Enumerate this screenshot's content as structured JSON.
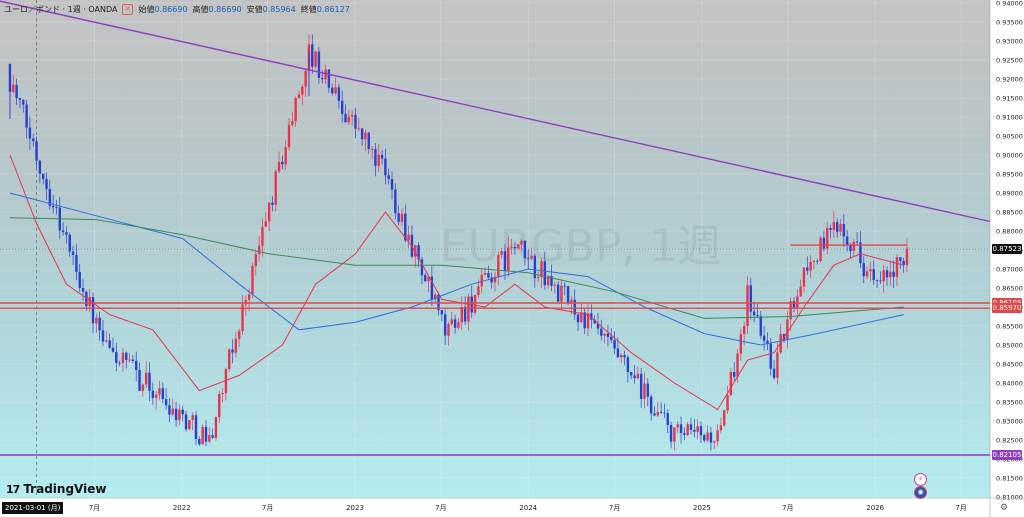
{
  "header": {
    "symbol": "ユーロ／ポンド · 1週 · OANDA",
    "ohlc": [
      {
        "label": "始値",
        "value": "0.86690"
      },
      {
        "label": "高値",
        "value": "0.86690"
      },
      {
        "label": "安値",
        "value": "0.85964"
      },
      {
        "label": "終値",
        "value": "0.86127"
      }
    ]
  },
  "watermark": "EURGBP, 1週",
  "brand": {
    "name": "TradingView",
    "mark": "17"
  },
  "cursor_date": "2021-03-01 (月)",
  "markers": {
    "alert": "⚡",
    "flag": "◉"
  },
  "price_labels": [
    {
      "value": "0.87523",
      "price": 0.87523,
      "bg": "#111111"
    },
    {
      "value": "0.86105",
      "price": 0.86105,
      "bg": "#e04848"
    },
    {
      "value": "0.85970",
      "price": 0.8597,
      "bg": "#e04848"
    },
    {
      "value": "0.82105",
      "price": 0.82105,
      "bg": "#8e3fbf"
    }
  ],
  "chart_data": {
    "type": "candlestick",
    "timeframe": "weekly",
    "y_axis": {
      "min": 0.81,
      "max": 0.94,
      "step": 0.005,
      "ticks": [
        "0.81000",
        "0.81500",
        "0.82000",
        "0.82500",
        "0.83000",
        "0.83500",
        "0.84000",
        "0.84500",
        "0.85000",
        "0.85500",
        "0.86000",
        "0.86500",
        "0.87000",
        "0.87500",
        "0.88000",
        "0.88500",
        "0.89000",
        "0.89500",
        "0.90000",
        "0.90500",
        "0.91000",
        "0.91500",
        "0.92000",
        "0.92500",
        "0.93000",
        "0.93500",
        "0.94000"
      ]
    },
    "x_axis": {
      "start": "2020-12-14",
      "end": "2026-08-31",
      "ticks": [
        {
          "label": "7月",
          "date": "2021-07-01"
        },
        {
          "label": "2022",
          "date": "2022-01-01"
        },
        {
          "label": "7月",
          "date": "2022-07-01"
        },
        {
          "label": "2023",
          "date": "2023-01-01"
        },
        {
          "label": "7月",
          "date": "2023-07-01"
        },
        {
          "label": "2024",
          "date": "2024-01-01"
        },
        {
          "label": "7月",
          "date": "2024-07-01"
        },
        {
          "label": "2025",
          "date": "2025-01-01"
        },
        {
          "label": "7月",
          "date": "2025-07-01"
        },
        {
          "label": "2026",
          "date": "2026-01-01"
        },
        {
          "label": "7月",
          "date": "2026-07-01"
        }
      ]
    },
    "colors": {
      "up": "#e8344f",
      "down": "#2a3fd0"
    },
    "key_prices": [
      {
        "date": "2021-01-04",
        "value": 0.92
      },
      {
        "date": "2021-07-19",
        "value": 0.85
      },
      {
        "date": "2022-02-28",
        "value": 0.825
      },
      {
        "date": "2022-09-26",
        "value": 0.927
      },
      {
        "date": "2023-03-06",
        "value": 0.895
      },
      {
        "date": "2023-07-10",
        "value": 0.853
      },
      {
        "date": "2023-12-04",
        "value": 0.876
      },
      {
        "date": "2024-06-03",
        "value": 0.852
      },
      {
        "date": "2024-11-04",
        "value": 0.826
      },
      {
        "date": "2025-02-10",
        "value": 0.826
      },
      {
        "date": "2025-04-07",
        "value": 0.863
      },
      {
        "date": "2025-06-02",
        "value": 0.844
      },
      {
        "date": "2025-07-28",
        "value": 0.868
      },
      {
        "date": "2025-10-20",
        "value": 0.883
      },
      {
        "date": "2026-01-05",
        "value": 0.865
      },
      {
        "date": "2026-03-09",
        "value": 0.872
      }
    ],
    "lines": [
      {
        "name": "trendline",
        "color": "#8e3fbf",
        "points": [
          {
            "date": "2020-12-14",
            "value": 0.9405
          },
          {
            "date": "2026-08-31",
            "value": 0.8825
          }
        ]
      },
      {
        "name": "resistance",
        "color": "#e04848",
        "points": [
          {
            "date": "2025-07-07",
            "value": 0.8763
          },
          {
            "date": "2026-03-09",
            "value": 0.8763
          }
        ]
      },
      {
        "name": "support",
        "color": "#e04848",
        "points": [
          {
            "date": "2020-12-14",
            "value": 0.86105
          },
          {
            "date": "2026-08-31",
            "value": 0.86105
          }
        ]
      },
      {
        "name": "support",
        "color": "#e04848",
        "points": [
          {
            "date": "2020-12-14",
            "value": 0.8597
          },
          {
            "date": "2026-08-31",
            "value": 0.8597
          }
        ]
      },
      {
        "name": "support",
        "color": "#8e3fbf",
        "points": [
          {
            "date": "2020-12-14",
            "value": 0.82105
          },
          {
            "date": "2026-08-31",
            "value": 0.82105
          }
        ]
      }
    ],
    "moving_averages": [
      {
        "color": "#e8344f",
        "points": [
          {
            "date": "2021-01-04",
            "value": 0.9
          },
          {
            "date": "2021-03-01",
            "value": 0.882
          },
          {
            "date": "2021-05-03",
            "value": 0.866
          },
          {
            "date": "2021-08-02",
            "value": 0.858
          },
          {
            "date": "2021-11-01",
            "value": 0.854
          },
          {
            "date": "2022-02-07",
            "value": 0.838
          },
          {
            "date": "2022-05-02",
            "value": 0.842
          },
          {
            "date": "2022-08-01",
            "value": 0.85
          },
          {
            "date": "2022-10-10",
            "value": 0.866
          },
          {
            "date": "2023-01-02",
            "value": 0.874
          },
          {
            "date": "2023-03-06",
            "value": 0.885
          },
          {
            "date": "2023-05-01",
            "value": 0.876
          },
          {
            "date": "2023-07-03",
            "value": 0.862
          },
          {
            "date": "2023-10-02",
            "value": 0.86
          },
          {
            "date": "2023-12-04",
            "value": 0.866
          },
          {
            "date": "2024-02-05",
            "value": 0.86
          },
          {
            "date": "2024-05-06",
            "value": 0.858
          },
          {
            "date": "2024-08-05",
            "value": 0.848
          },
          {
            "date": "2024-11-04",
            "value": 0.84
          },
          {
            "date": "2025-02-03",
            "value": 0.833
          },
          {
            "date": "2025-04-07",
            "value": 0.846
          },
          {
            "date": "2025-06-02",
            "value": 0.848
          },
          {
            "date": "2025-08-04",
            "value": 0.86
          },
          {
            "date": "2025-10-06",
            "value": 0.871
          },
          {
            "date": "2025-12-01",
            "value": 0.874
          },
          {
            "date": "2026-03-02",
            "value": 0.871
          }
        ]
      },
      {
        "color": "#2f6fe0",
        "points": [
          {
            "date": "2021-01-04",
            "value": 0.89
          },
          {
            "date": "2021-07-05",
            "value": 0.884
          },
          {
            "date": "2022-01-03",
            "value": 0.878
          },
          {
            "date": "2022-05-02",
            "value": 0.866
          },
          {
            "date": "2022-09-05",
            "value": 0.854
          },
          {
            "date": "2023-01-02",
            "value": 0.856
          },
          {
            "date": "2023-05-01",
            "value": 0.86
          },
          {
            "date": "2023-09-04",
            "value": 0.866
          },
          {
            "date": "2024-01-01",
            "value": 0.87
          },
          {
            "date": "2024-05-06",
            "value": 0.868
          },
          {
            "date": "2024-09-02",
            "value": 0.86
          },
          {
            "date": "2025-01-06",
            "value": 0.853
          },
          {
            "date": "2025-05-05",
            "value": 0.85
          },
          {
            "date": "2025-09-01",
            "value": 0.853
          },
          {
            "date": "2026-03-02",
            "value": 0.858
          }
        ]
      },
      {
        "color": "#3d8a5a",
        "points": [
          {
            "date": "2021-01-04",
            "value": 0.8835
          },
          {
            "date": "2021-07-05",
            "value": 0.883
          },
          {
            "date": "2022-01-03",
            "value": 0.879
          },
          {
            "date": "2022-07-04",
            "value": 0.874
          },
          {
            "date": "2023-01-02",
            "value": 0.871
          },
          {
            "date": "2023-07-03",
            "value": 0.871
          },
          {
            "date": "2024-01-01",
            "value": 0.869
          },
          {
            "date": "2024-07-01",
            "value": 0.864
          },
          {
            "date": "2025-01-06",
            "value": 0.857
          },
          {
            "date": "2025-07-07",
            "value": 0.8575
          },
          {
            "date": "2026-03-02",
            "value": 0.86
          }
        ]
      }
    ]
  }
}
